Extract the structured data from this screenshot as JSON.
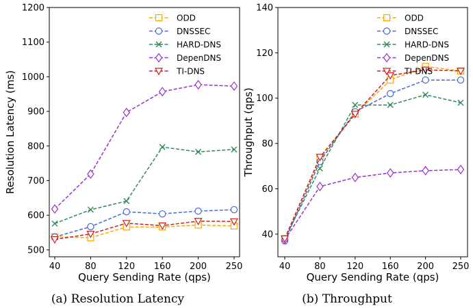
{
  "chart_data": [
    {
      "type": "line",
      "caption": "(a) Resolution Latency",
      "xlabel": "Query Sending Rate (qps)",
      "ylabel": "Resolution Latency (ms)",
      "categories": [
        "40",
        "80",
        "120",
        "160",
        "200",
        "250"
      ],
      "ylim": [
        480,
        1200
      ],
      "yticks": [
        500,
        600,
        700,
        800,
        900,
        1000,
        1100,
        1200
      ],
      "grid": false,
      "legend_position": "top-right",
      "series": [
        {
          "name": "ODD",
          "color": "#ffa500",
          "marker": "square",
          "values": [
            538,
            535,
            566,
            566,
            572,
            569
          ]
        },
        {
          "name": "DNSSEC",
          "color": "#4169e1",
          "marker": "circle",
          "values": [
            537,
            567,
            610,
            604,
            612,
            616
          ]
        },
        {
          "name": "HARD-DNS",
          "color": "#2e8b57",
          "marker": "x",
          "values": [
            576,
            616,
            641,
            797,
            783,
            790
          ]
        },
        {
          "name": "DepenDNS",
          "color": "#9932cc",
          "marker": "diamond",
          "values": [
            618,
            719,
            897,
            957,
            977,
            973
          ]
        },
        {
          "name": "TI-DNS",
          "color": "#cc2020",
          "marker": "triangle-down",
          "values": [
            530,
            546,
            577,
            570,
            583,
            582
          ]
        }
      ]
    },
    {
      "type": "line",
      "caption": "(b) Throughput",
      "xlabel": "Query Sending Rate (qps)",
      "ylabel": "Throughput (qps)",
      "categories": [
        "40",
        "80",
        "120",
        "160",
        "200",
        "250"
      ],
      "ylim": [
        30,
        140
      ],
      "yticks": [
        40,
        60,
        80,
        100,
        120,
        140
      ],
      "grid": false,
      "legend_position": "top-right",
      "series": [
        {
          "name": "ODD",
          "color": "#ffa500",
          "marker": "square",
          "values": [
            38,
            73,
            93,
            108,
            114,
            112
          ]
        },
        {
          "name": "DNSSEC",
          "color": "#4169e1",
          "marker": "circle",
          "values": [
            37,
            72,
            94,
            102,
            108,
            108
          ]
        },
        {
          "name": "HARD-DNS",
          "color": "#2e8b57",
          "marker": "x",
          "values": [
            38,
            69,
            97,
            97,
            101.5,
            98
          ]
        },
        {
          "name": "DepenDNS",
          "color": "#9932cc",
          "marker": "diamond",
          "values": [
            37.5,
            61,
            65,
            67,
            68,
            68.5
          ]
        },
        {
          "name": "TI-DNS",
          "color": "#cc2020",
          "marker": "triangle-down",
          "values": [
            38,
            74,
            93,
            110,
            112.5,
            112
          ]
        }
      ]
    }
  ]
}
